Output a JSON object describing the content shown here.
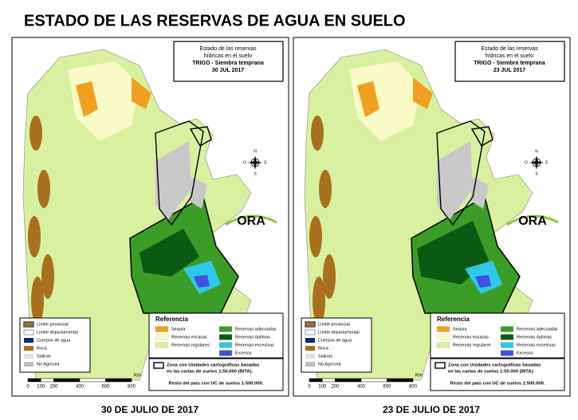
{
  "title": "ESTADO DE LAS RESERVAS DE AGUA EN SUELO",
  "legend": {
    "base": [
      "Límite provincial",
      "Límite departamental",
      "Cuerpos de agua",
      "Roca",
      "Salinas",
      "No Agrícola"
    ],
    "reference_title": "Referencia",
    "reference": [
      {
        "label": "Sequía",
        "color": "#f0a020"
      },
      {
        "label": "Reservas escasas",
        "color": "#fafac8"
      },
      {
        "label": "Reservas regulares",
        "color": "#d8f0a0"
      },
      {
        "label": "Reservas adecuadas",
        "color": "#3c9c28"
      },
      {
        "label": "Reservas óptimas",
        "color": "#0a5a14"
      },
      {
        "label": "Reservas excesivas",
        "color": "#30c8e8"
      },
      {
        "label": "Excesos",
        "color": "#4050e0"
      }
    ],
    "note": [
      "Zona con Unidades cartográficas basadas",
      "en las cartas de suelos 1:50.000 (INTA)."
    ],
    "rest": "Resto del país con UC de suelos 1:500.000.",
    "scale": {
      "unit": "Km",
      "ticks": [
        0,
        100,
        200,
        400,
        600,
        800
      ]
    },
    "logo": "ORA",
    "compass": [
      "N",
      "S",
      "E",
      "O"
    ]
  },
  "maps": [
    {
      "heading": [
        "Estado de las reservas",
        "hídricas en el suelo",
        "TRIGO - Siembra temprana"
      ],
      "date": "30 JUL 2017",
      "caption": "30 DE JULIO DE 2017"
    },
    {
      "heading": [
        "Estado de las reservas",
        "hídricas en el suelo",
        "TRIGO - Siembra temprana"
      ],
      "date": "23 JUL 2017",
      "caption": "23 DE JULIO DE 2017"
    }
  ]
}
